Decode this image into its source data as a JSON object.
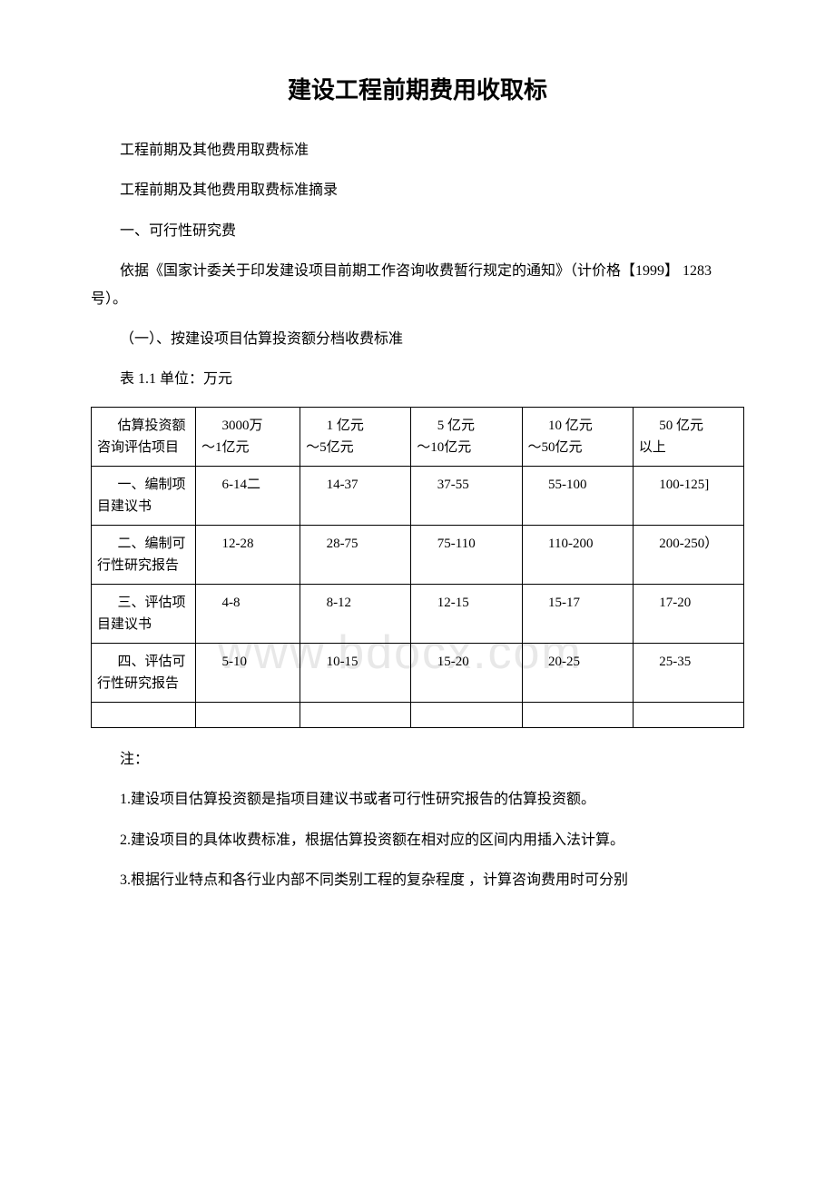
{
  "title": "建设工程前期费用收取标",
  "paragraphs": {
    "p1": "工程前期及其他费用取费标准",
    "p2": "工程前期及其他费用取费标准摘录",
    "p3": "一、可行性研究费",
    "p4": "依据《国家计委关于印发建设项目前期工作咨询收费暂行规定的通知》（计价格【1999】 1283 号）。",
    "p5": "（一）、按建设项目估算投资额分档收费标准",
    "p6": "表 1.1 单位：万元"
  },
  "table": {
    "columns": [
      "估算投资额 咨询评估项目",
      "3000万\n～1亿元",
      "1 亿元\n～5亿元",
      "5 亿元\n～10亿元",
      "10 亿元\n～50亿元",
      "50 亿元\n以上"
    ],
    "rows": [
      [
        "一、编制项目建议书",
        "6-14二",
        "14-37",
        "37-55",
        "55-100",
        "100-125]"
      ],
      [
        "二、编制可行性研究报告",
        "12-28",
        "28-75",
        "75-110",
        "110-200",
        "200-250）"
      ],
      [
        "三、评估项目建议书",
        "4-8",
        "8-12",
        "12-15",
        "15-17",
        "17-20"
      ],
      [
        "四、评估可行性研究报告",
        "5-10",
        "10-15",
        "15-20",
        "20-25",
        "25-35"
      ]
    ],
    "col_widths": [
      "16%",
      "16%",
      "17%",
      "17%",
      "17%",
      "17%"
    ],
    "border_color": "#000000"
  },
  "notes": {
    "n0": "注：",
    "n1": "1.建设项目估算投资额是指项目建议书或者可行性研究报告的估算投资额。",
    "n2": "2.建设项目的具体收费标准，根据估算投资额在相对应的区间内用插入法计算。",
    "n3": "3.根据行业特点和各行业内部不同类别工程的复杂程度 ，计算咨询费用时可分别"
  },
  "watermark_text": "www.bdocx.com",
  "styling": {
    "background_color": "#ffffff",
    "text_color": "#000000",
    "title_fontsize": 26,
    "body_fontsize": 16,
    "cell_fontsize": 15,
    "watermark_color": "#e8e8e8"
  }
}
